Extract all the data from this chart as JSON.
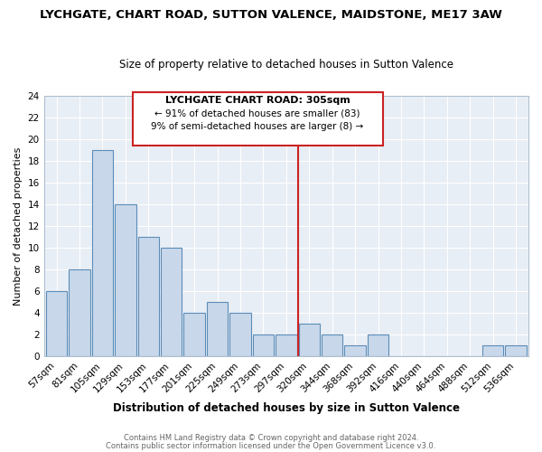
{
  "title": "LYCHGATE, CHART ROAD, SUTTON VALENCE, MAIDSTONE, ME17 3AW",
  "subtitle": "Size of property relative to detached houses in Sutton Valence",
  "xlabel": "Distribution of detached houses by size in Sutton Valence",
  "ylabel": "Number of detached properties",
  "bin_labels": [
    "57sqm",
    "81sqm",
    "105sqm",
    "129sqm",
    "153sqm",
    "177sqm",
    "201sqm",
    "225sqm",
    "249sqm",
    "273sqm",
    "297sqm",
    "320sqm",
    "344sqm",
    "368sqm",
    "392sqm",
    "416sqm",
    "440sqm",
    "464sqm",
    "488sqm",
    "512sqm",
    "536sqm"
  ],
  "bar_heights": [
    6,
    8,
    19,
    14,
    11,
    10,
    4,
    5,
    4,
    2,
    2,
    3,
    2,
    1,
    2,
    0,
    0,
    0,
    0,
    1,
    1
  ],
  "bar_color": "#c8d8ea",
  "bar_edge_color": "#5b8db8",
  "vline_color": "#cc2222",
  "vline_x_idx": 10.5,
  "plot_bg_color": "#e8eef5",
  "ylim": [
    0,
    24
  ],
  "yticks": [
    0,
    2,
    4,
    6,
    8,
    10,
    12,
    14,
    16,
    18,
    20,
    22,
    24
  ],
  "annotation_title": "LYCHGATE CHART ROAD: 305sqm",
  "annotation_line1": "← 91% of detached houses are smaller (83)",
  "annotation_line2": "9% of semi-detached houses are larger (8) →",
  "ann_box_color": "#cc2222",
  "footer1": "Contains HM Land Registry data © Crown copyright and database right 2024.",
  "footer2": "Contains public sector information licensed under the Open Government Licence v3.0.",
  "title_fontsize": 9.5,
  "subtitle_fontsize": 8.5,
  "xlabel_fontsize": 8.5,
  "ylabel_fontsize": 8,
  "tick_fontsize": 7.5,
  "ann_title_fontsize": 8,
  "ann_body_fontsize": 7.5,
  "footer_fontsize": 6,
  "footer_color": "#666666"
}
